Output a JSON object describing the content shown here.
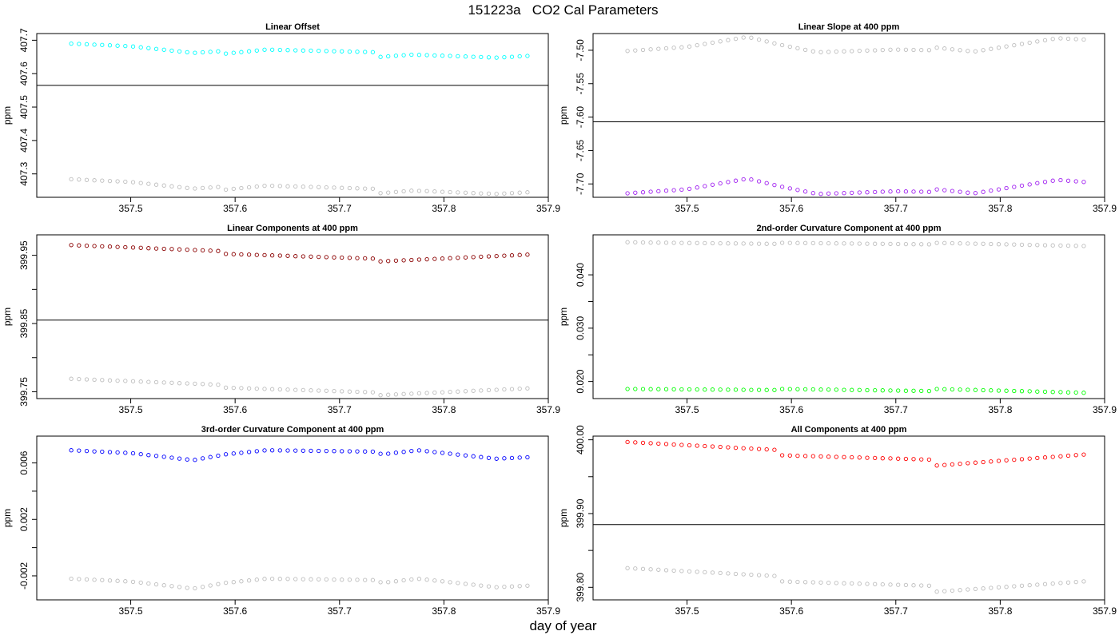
{
  "title": "151223a   CO2 Cal Parameters",
  "xlabel": "day of year",
  "chart_data": [
    {
      "type": "scatter",
      "title": "Linear Offset",
      "ylabel": "ppm",
      "xlim": [
        357.41,
        357.9
      ],
      "ylim": [
        407.23,
        407.72
      ],
      "xticks": [
        "357.5",
        "357.6",
        "357.7",
        "357.8",
        "357.9"
      ],
      "yticks": [
        "407.3",
        "407.4",
        "407.5",
        "407.6",
        "407.7"
      ],
      "hline": 407.565,
      "series": [
        {
          "color": "#00ffff",
          "anchors": [
            [
              357.443,
              407.69
            ],
            [
              357.5,
              407.682
            ],
            [
              357.56,
              407.662
            ],
            [
              357.59,
              407.668
            ],
            [
              357.591,
              407.66
            ],
            [
              357.63,
              407.672
            ],
            [
              357.737,
              407.664
            ],
            [
              357.738,
              407.65
            ],
            [
              357.77,
              407.657
            ],
            [
              357.85,
              407.648
            ],
            [
              357.88,
              407.653
            ]
          ]
        },
        {
          "color": "#bebebe",
          "anchors": [
            [
              357.443,
              407.284
            ],
            [
              357.5,
              407.276
            ],
            [
              357.56,
              407.256
            ],
            [
              357.59,
              407.262
            ],
            [
              357.591,
              407.253
            ],
            [
              357.63,
              407.265
            ],
            [
              357.737,
              407.255
            ],
            [
              357.738,
              407.242
            ],
            [
              357.77,
              407.25
            ],
            [
              357.85,
              407.24
            ],
            [
              357.88,
              407.245
            ]
          ]
        }
      ]
    },
    {
      "type": "scatter",
      "title": "Linear Slope at 400 ppm",
      "ylabel": "ppm",
      "xlim": [
        357.41,
        357.9
      ],
      "ylim": [
        -7.72,
        -7.475
      ],
      "xticks": [
        "357.5",
        "357.6",
        "357.7",
        "357.8",
        "357.9"
      ],
      "yticks": [
        "-7.70",
        "-7.65",
        "-7.60",
        "-7.55",
        "-7.50"
      ],
      "hline": -7.607,
      "series": [
        {
          "color": "#bebebe",
          "anchors": [
            [
              357.443,
              -7.501
            ],
            [
              357.5,
              -7.495
            ],
            [
              357.558,
              -7.48
            ],
            [
              357.59,
              -7.492
            ],
            [
              357.625,
              -7.503
            ],
            [
              357.7,
              -7.499
            ],
            [
              357.737,
              -7.5
            ],
            [
              357.738,
              -7.496
            ],
            [
              357.775,
              -7.502
            ],
            [
              357.855,
              -7.482
            ],
            [
              357.88,
              -7.484
            ]
          ]
        },
        {
          "color": "#a020f0",
          "anchors": [
            [
              357.443,
              -7.714
            ],
            [
              357.5,
              -7.708
            ],
            [
              357.558,
              -7.692
            ],
            [
              357.59,
              -7.704
            ],
            [
              357.625,
              -7.715
            ],
            [
              357.7,
              -7.711
            ],
            [
              357.737,
              -7.712
            ],
            [
              357.738,
              -7.708
            ],
            [
              357.775,
              -7.714
            ],
            [
              357.855,
              -7.694
            ],
            [
              357.88,
              -7.697
            ]
          ]
        }
      ]
    },
    {
      "type": "scatter",
      "title": "Linear Components at 400 ppm",
      "ylabel": "ppm",
      "xlim": [
        357.41,
        357.9
      ],
      "ylim": [
        399.74,
        399.98
      ],
      "xticks": [
        "357.5",
        "357.6",
        "357.7",
        "357.8",
        "357.9"
      ],
      "yticks": [
        "399.75",
        "399.85",
        "399.95"
      ],
      "hline": 399.855,
      "series": [
        {
          "color": "#8b0000",
          "anchors": [
            [
              357.443,
              399.965
            ],
            [
              357.59,
              399.956
            ],
            [
              357.591,
              399.952
            ],
            [
              357.737,
              399.945
            ],
            [
              357.738,
              399.941
            ],
            [
              357.88,
              399.951
            ]
          ]
        },
        {
          "color": "#bebebe",
          "anchors": [
            [
              357.443,
              399.769
            ],
            [
              357.59,
              399.76
            ],
            [
              357.591,
              399.756
            ],
            [
              357.737,
              399.749
            ],
            [
              357.738,
              399.745
            ],
            [
              357.88,
              399.755
            ]
          ]
        }
      ]
    },
    {
      "type": "scatter",
      "title": "2nd-order Curvature Component at 400 ppm",
      "ylabel": "ppm",
      "xlim": [
        357.41,
        357.9
      ],
      "ylim": [
        0.0168,
        0.0475
      ],
      "xticks": [
        "357.5",
        "357.6",
        "357.7",
        "357.8",
        "357.9"
      ],
      "yticks": [
        "0.020",
        "0.030",
        "0.040"
      ],
      "hline": null,
      "series": [
        {
          "color": "#bebebe",
          "anchors": [
            [
              357.443,
              0.0461
            ],
            [
              357.59,
              0.0458
            ],
            [
              357.591,
              0.046
            ],
            [
              357.737,
              0.0457
            ],
            [
              357.738,
              0.046
            ],
            [
              357.88,
              0.0454
            ]
          ]
        },
        {
          "color": "#00ff00",
          "anchors": [
            [
              357.443,
              0.0186
            ],
            [
              357.59,
              0.0184
            ],
            [
              357.591,
              0.0186
            ],
            [
              357.737,
              0.0182
            ],
            [
              357.738,
              0.0186
            ],
            [
              357.88,
              0.0179
            ]
          ]
        }
      ]
    },
    {
      "type": "scatter",
      "title": "3rd-order Curvature Component at 400 ppm",
      "ylabel": "ppm",
      "xlim": [
        357.41,
        357.9
      ],
      "ylim": [
        -0.0037,
        0.0079
      ],
      "xticks": [
        "357.5",
        "357.6",
        "357.7",
        "357.8",
        "357.9"
      ],
      "yticks": [
        "-0.002",
        "0.002",
        "0.006"
      ],
      "hline": null,
      "series": [
        {
          "color": "#0000ff",
          "anchors": [
            [
              357.443,
              0.0069
            ],
            [
              357.5,
              0.0067
            ],
            [
              357.56,
              0.0062
            ],
            [
              357.59,
              0.0066
            ],
            [
              357.63,
              0.0069
            ],
            [
              357.737,
              0.0068
            ],
            [
              357.74,
              0.0066
            ],
            [
              357.775,
              0.0069
            ],
            [
              357.85,
              0.0063
            ],
            [
              357.88,
              0.0064
            ]
          ]
        },
        {
          "color": "#bebebe",
          "anchors": [
            [
              357.443,
              -0.0022
            ],
            [
              357.5,
              -0.0024
            ],
            [
              357.56,
              -0.0029
            ],
            [
              357.59,
              -0.0025
            ],
            [
              357.63,
              -0.0022
            ],
            [
              357.737,
              -0.0023
            ],
            [
              357.74,
              -0.0025
            ],
            [
              357.775,
              -0.0022
            ],
            [
              357.85,
              -0.0028
            ],
            [
              357.88,
              -0.0027
            ]
          ]
        }
      ]
    },
    {
      "type": "scatter",
      "title": "All Components at 400 ppm",
      "ylabel": "ppm",
      "xlim": [
        357.41,
        357.9
      ],
      "ylim": [
        399.783,
        400.005
      ],
      "xticks": [
        "357.5",
        "357.6",
        "357.7",
        "357.8",
        "357.9"
      ],
      "yticks": [
        "399.80",
        "399.90",
        "400.00"
      ],
      "hline": 399.885,
      "series": [
        {
          "color": "#ff0000",
          "anchors": [
            [
              357.443,
              399.997
            ],
            [
              357.59,
              399.986
            ],
            [
              357.591,
              399.979
            ],
            [
              357.737,
              399.973
            ],
            [
              357.738,
              399.965
            ],
            [
              357.88,
              399.98
            ]
          ]
        },
        {
          "color": "#bebebe",
          "anchors": [
            [
              357.443,
              399.826
            ],
            [
              357.59,
              399.815
            ],
            [
              357.591,
              399.808
            ],
            [
              357.737,
              399.802
            ],
            [
              357.738,
              399.794
            ],
            [
              357.88,
              399.808
            ]
          ]
        }
      ]
    }
  ]
}
